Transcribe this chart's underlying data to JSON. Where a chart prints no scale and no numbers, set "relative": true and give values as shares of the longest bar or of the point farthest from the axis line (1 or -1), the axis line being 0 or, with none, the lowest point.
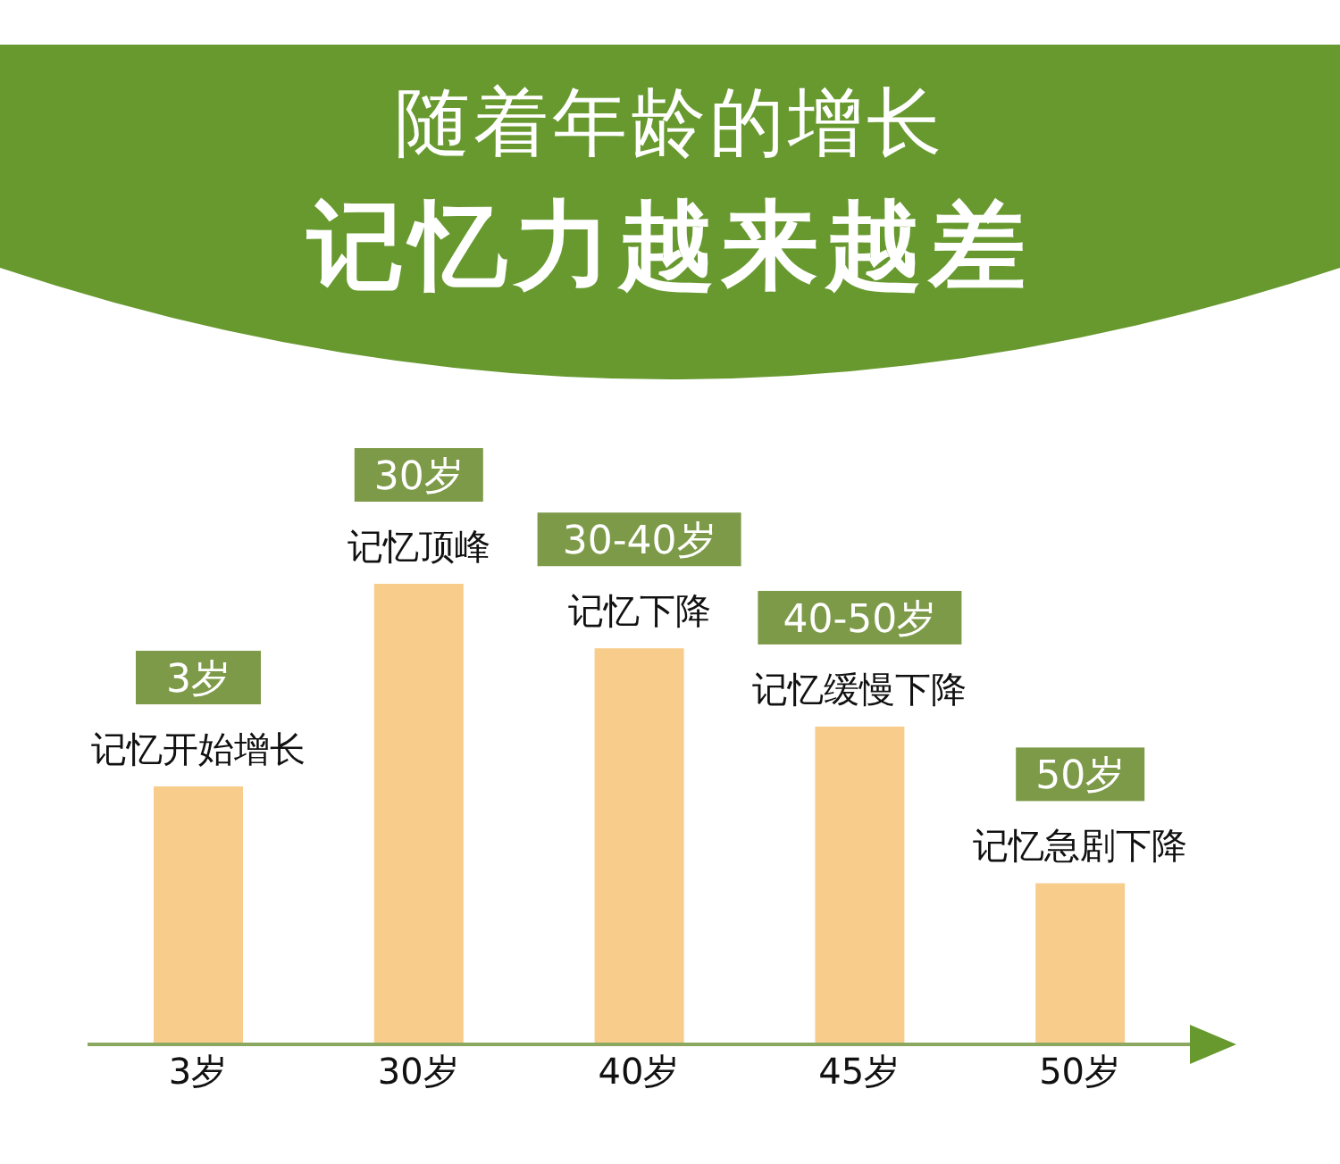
{
  "chart_data": {
    "type": "bar",
    "title": "随着年龄的增长",
    "subtitle": "记忆力越来越差",
    "relative": true,
    "categories": [
      "3岁",
      "30岁",
      "40岁",
      "45岁",
      "50岁"
    ],
    "values": [
      0.56,
      1,
      0.86,
      0.69,
      0.35
    ],
    "color": "#f8cd8c",
    "annotations": [
      "3岁",
      "记忆开始增长",
      "30岁",
      "记忆顶峰",
      "30-40岁",
      "记忆下降",
      "40-50岁",
      "记忆缓慢下降",
      "50岁",
      "记忆急剧下降"
    ],
    "grid": false,
    "legend": false
  }
}
